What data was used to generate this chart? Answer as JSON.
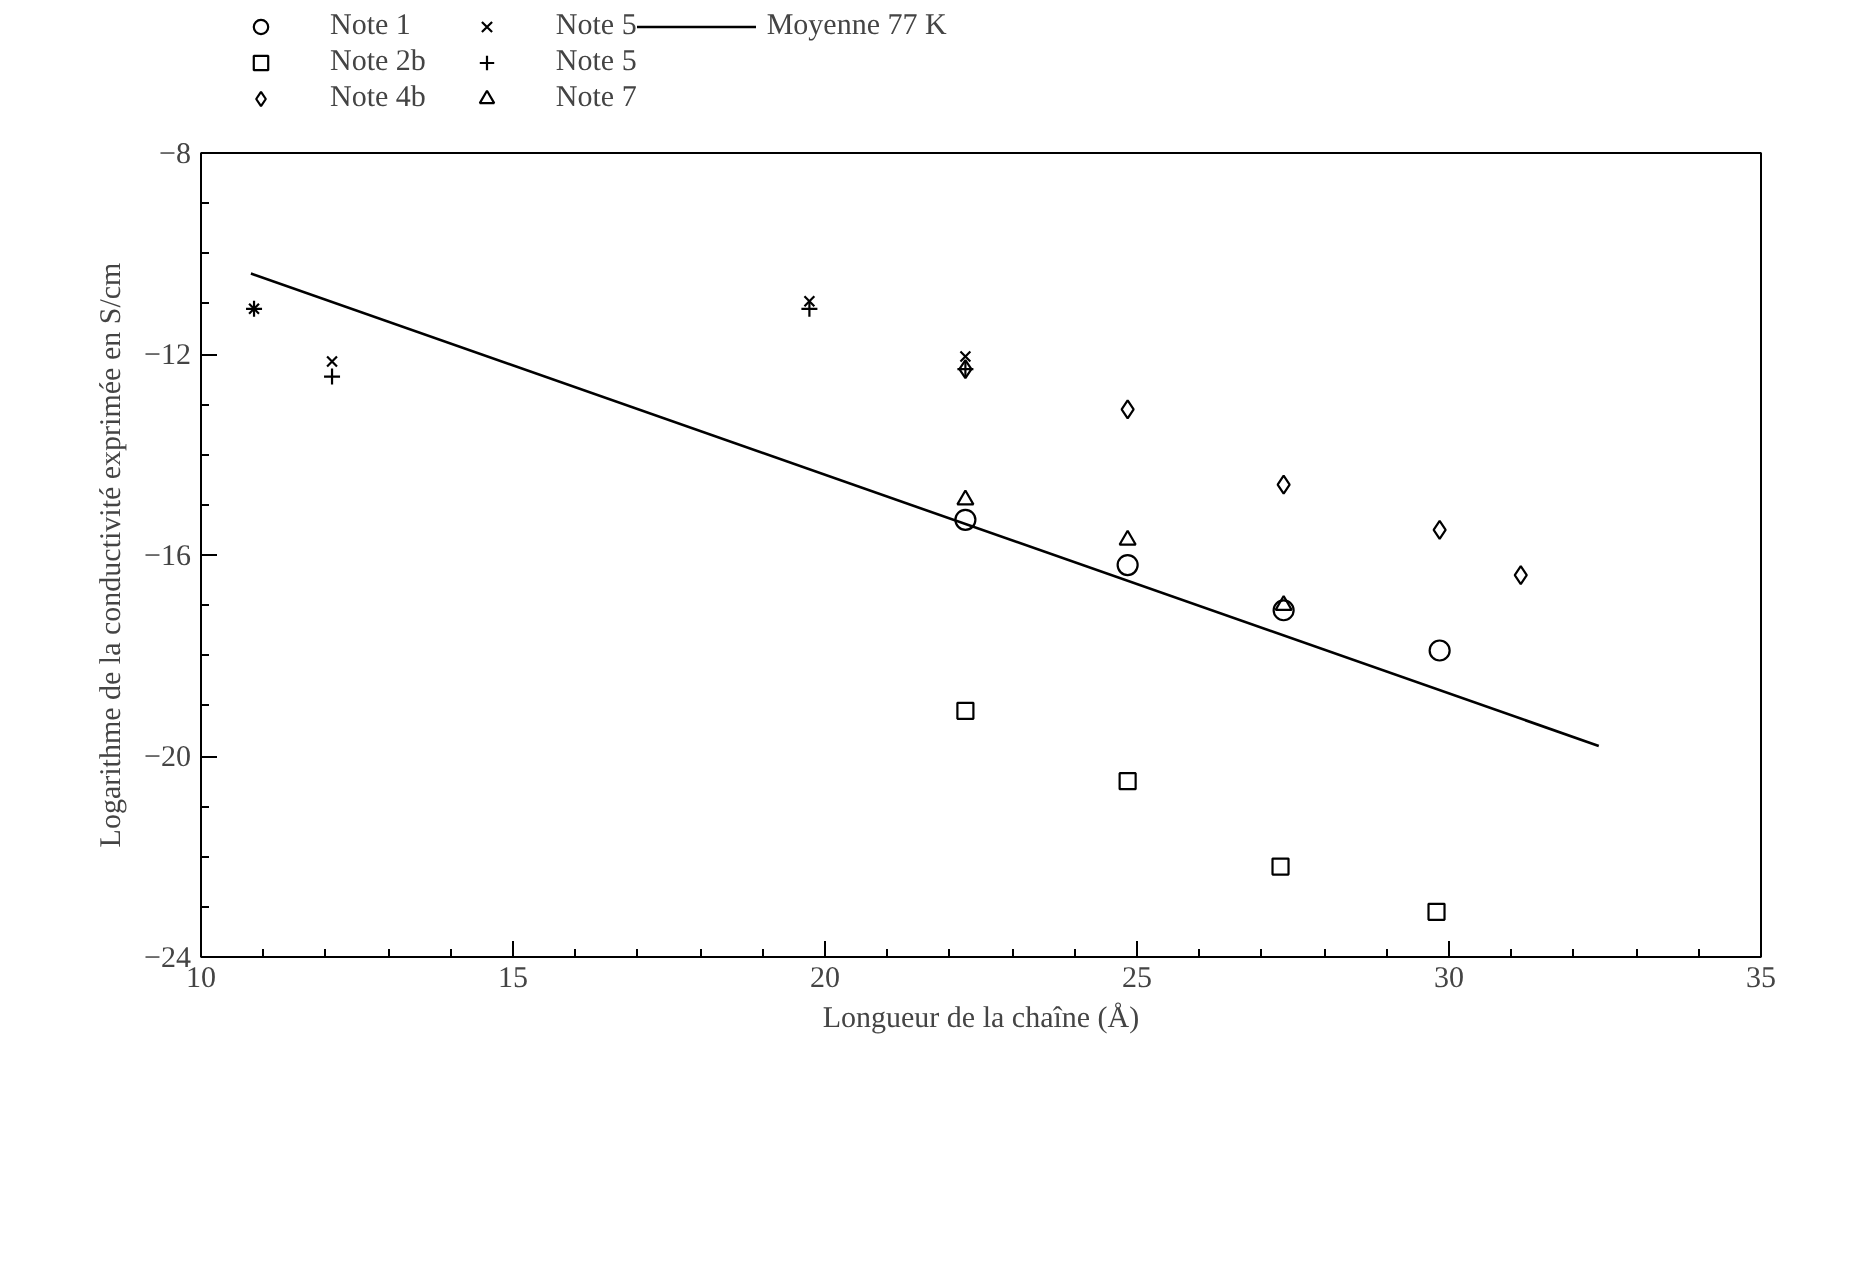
{
  "chart_data": {
    "type": "scatter",
    "xlabel": "Longueur de la chaîne (Å)",
    "ylabel": "Logarithme de la conductivité exprimée en S/cm",
    "xlim": [
      10,
      35
    ],
    "ylim": [
      -24,
      -8
    ],
    "xticks": [
      10,
      15,
      20,
      25,
      30,
      35
    ],
    "yticks": [
      -24,
      -20,
      -16,
      -12,
      -8
    ],
    "grid": false,
    "legend": "top",
    "series": [
      {
        "name": "Note 1",
        "color": "#000000",
        "marker": "circle",
        "x": [
          22.25,
          24.85,
          27.35,
          29.85
        ],
        "values": [
          -15.3,
          -16.2,
          -17.1,
          -17.9
        ]
      },
      {
        "name": "Note 2b",
        "color": "#000000",
        "marker": "square",
        "x": [
          22.25,
          24.85,
          27.3,
          29.8
        ],
        "values": [
          -19.1,
          -20.5,
          -22.2,
          -23.1
        ]
      },
      {
        "name": "Note 4b",
        "color": "#000000",
        "marker": "diamond",
        "x": [
          22.25,
          24.85,
          27.35,
          29.85,
          31.15
        ],
        "values": [
          -12.3,
          -13.1,
          -14.6,
          -15.5,
          -16.4
        ]
      },
      {
        "name": "Note 5",
        "color": "#000000",
        "marker": "x",
        "x": [
          10.85,
          12.1,
          19.75,
          22.25
        ],
        "values": [
          -11.1,
          -12.15,
          -10.95,
          -12.05
        ]
      },
      {
        "name": "Note 5",
        "color": "#000000",
        "marker": "cross",
        "x": [
          10.85,
          12.1,
          19.75,
          22.25
        ],
        "values": [
          -11.1,
          -12.45,
          -11.1,
          -12.3
        ]
      },
      {
        "name": "Note 7",
        "color": "#000000",
        "marker": "triangle",
        "x": [
          22.25,
          24.85,
          27.35
        ],
        "values": [
          -14.9,
          -15.7,
          -17.0
        ]
      },
      {
        "name": "Moyenne 77 K",
        "type": "line",
        "color": "#000000",
        "line_style": "solid",
        "x": [
          10.8,
          32.4
        ],
        "values": [
          -10.4,
          -19.8
        ]
      }
    ]
  }
}
